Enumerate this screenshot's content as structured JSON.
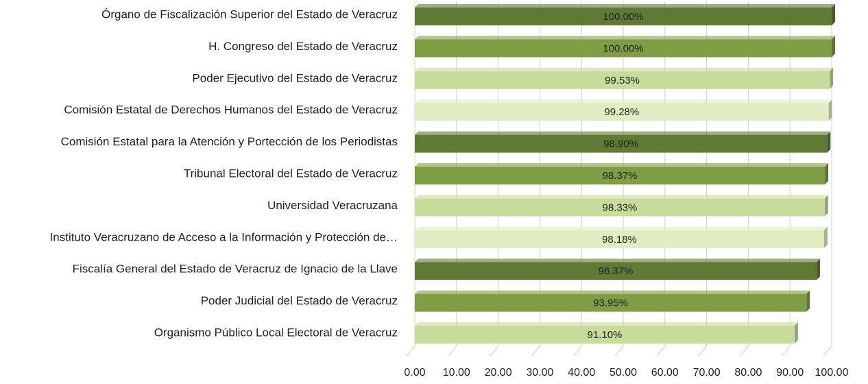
{
  "chart_data": {
    "type": "bar",
    "orientation": "horizontal",
    "categories": [
      "Órgano de Fiscalización Superior del Estado de Veracruz",
      "H. Congreso del Estado de Veracruz",
      "Poder Ejecutivo del Estado de Veracruz",
      "Comisión Estatal de Derechos Humanos del Estado de Veracruz",
      "Comisión Estatal para la Atención y Portección de los Periodistas",
      "Tribunal Electoral del Estado de Veracruz",
      "Universidad Veracruzana",
      "Instituto Veracruzano de Acceso a la Información y Protección de…",
      "Fiscalía General del Estado de Veracruz de Ignacio de la Llave",
      "Poder Judicial del Estado de Veracruz",
      "Organismo Público Local Electoral de Veracruz"
    ],
    "values": [
      100.0,
      100.0,
      99.53,
      99.28,
      98.9,
      98.37,
      98.33,
      98.18,
      96.37,
      93.95,
      91.1
    ],
    "value_labels": [
      "100.00%",
      "100.00%",
      "99.53%",
      "99.28%",
      "98.90%",
      "98.37%",
      "98.33%",
      "98.18%",
      "96.37%",
      "93.95%",
      "91.10%"
    ],
    "colors": [
      "#5f7a34",
      "#7f9e44",
      "#c8dc9c",
      "#e0ecc2",
      "#5f7a34",
      "#7f9e44",
      "#c8dc9c",
      "#e0ecc2",
      "#5f7a34",
      "#7f9e44",
      "#c8dc9c"
    ],
    "xlim": [
      0,
      100
    ],
    "xticks": [
      {
        "value": 0,
        "label": "0.00"
      },
      {
        "value": 10,
        "label": "10.00"
      },
      {
        "value": 20,
        "label": "20.00"
      },
      {
        "value": 30,
        "label": "30.00"
      },
      {
        "value": 40,
        "label": "40.00"
      },
      {
        "value": 50,
        "label": "50.00"
      },
      {
        "value": 60,
        "label": "60.00"
      },
      {
        "value": 70,
        "label": "70.00"
      },
      {
        "value": 80,
        "label": "80.00"
      },
      {
        "value": 90,
        "label": "90.00"
      },
      {
        "value": 100,
        "label": "100.00"
      }
    ],
    "grid": true
  }
}
